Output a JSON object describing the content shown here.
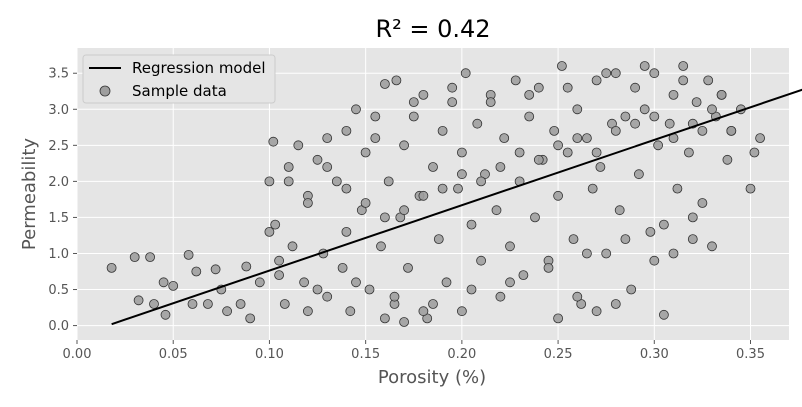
{
  "chart_data": {
    "type": "scatter",
    "title": "R² = 0.42",
    "xlabel": "Porosity (%)",
    "ylabel": "Permeability",
    "xlim": [
      0.0,
      0.37
    ],
    "ylim": [
      -0.2,
      3.85
    ],
    "x_ticks": [
      0.0,
      0.05,
      0.1,
      0.15,
      0.2,
      0.25,
      0.3,
      0.35
    ],
    "x_tick_labels": [
      "0.00",
      "0.05",
      "0.10",
      "0.15",
      "0.20",
      "0.25",
      "0.30",
      "0.35"
    ],
    "y_ticks": [
      0.0,
      0.5,
      1.0,
      1.5,
      2.0,
      2.5,
      3.0,
      3.5
    ],
    "y_tick_labels": [
      "0.0",
      "0.5",
      "1.0",
      "1.5",
      "2.0",
      "2.5",
      "3.0",
      "3.5"
    ],
    "grid": true,
    "legend_position": "top-left",
    "series": [
      {
        "name": "Regression model",
        "kind": "line",
        "color": "#000000",
        "x": [
          0.018,
          0.38
        ],
        "y": [
          0.02,
          3.3
        ]
      },
      {
        "name": "Sample data",
        "kind": "scatter",
        "color": "#9e9e9e",
        "edge_color": "#333333",
        "x": [
          0.018,
          0.03,
          0.032,
          0.038,
          0.04,
          0.045,
          0.046,
          0.05,
          0.058,
          0.06,
          0.062,
          0.068,
          0.072,
          0.075,
          0.078,
          0.085,
          0.088,
          0.09,
          0.095,
          0.1,
          0.102,
          0.103,
          0.105,
          0.108,
          0.11,
          0.112,
          0.115,
          0.118,
          0.12,
          0.12,
          0.125,
          0.128,
          0.13,
          0.13,
          0.135,
          0.138,
          0.14,
          0.14,
          0.142,
          0.145,
          0.148,
          0.15,
          0.152,
          0.155,
          0.158,
          0.16,
          0.162,
          0.165,
          0.166,
          0.168,
          0.17,
          0.172,
          0.175,
          0.178,
          0.18,
          0.182,
          0.185,
          0.188,
          0.19,
          0.192,
          0.195,
          0.198,
          0.2,
          0.2,
          0.202,
          0.205,
          0.208,
          0.21,
          0.212,
          0.215,
          0.218,
          0.22,
          0.222,
          0.225,
          0.228,
          0.23,
          0.232,
          0.235,
          0.238,
          0.24,
          0.242,
          0.245,
          0.248,
          0.25,
          0.252,
          0.255,
          0.258,
          0.26,
          0.262,
          0.265,
          0.268,
          0.27,
          0.272,
          0.275,
          0.278,
          0.28,
          0.282,
          0.285,
          0.288,
          0.29,
          0.292,
          0.295,
          0.298,
          0.3,
          0.302,
          0.305,
          0.308,
          0.31,
          0.312,
          0.315,
          0.318,
          0.32,
          0.322,
          0.325,
          0.328,
          0.33,
          0.332,
          0.335,
          0.338,
          0.34,
          0.345,
          0.35,
          0.352,
          0.355,
          0.38,
          0.1,
          0.11,
          0.12,
          0.13,
          0.14,
          0.15,
          0.16,
          0.17,
          0.18,
          0.19,
          0.2,
          0.21,
          0.22,
          0.23,
          0.24,
          0.25,
          0.26,
          0.27,
          0.28,
          0.29,
          0.3,
          0.31,
          0.32,
          0.33,
          0.34,
          0.105,
          0.125,
          0.145,
          0.165,
          0.185,
          0.205,
          0.225,
          0.245,
          0.265,
          0.285,
          0.305,
          0.325,
          0.155,
          0.175,
          0.195,
          0.215,
          0.235,
          0.255,
          0.275,
          0.295,
          0.315,
          0.335,
          0.16,
          0.17,
          0.18,
          0.26,
          0.27,
          0.3,
          0.31,
          0.32,
          0.25,
          0.28
        ],
        "y": [
          0.8,
          0.95,
          0.35,
          0.95,
          0.3,
          0.6,
          0.15,
          0.55,
          0.98,
          0.3,
          0.75,
          0.3,
          0.78,
          0.5,
          0.2,
          0.3,
          0.82,
          0.1,
          0.6,
          2.0,
          2.55,
          1.4,
          0.9,
          0.3,
          2.2,
          1.1,
          2.5,
          0.6,
          1.8,
          0.2,
          2.3,
          1.0,
          2.6,
          0.4,
          2.0,
          0.8,
          2.7,
          1.3,
          0.2,
          3.0,
          1.6,
          2.4,
          0.5,
          2.9,
          1.1,
          3.35,
          2.0,
          0.3,
          3.4,
          1.5,
          2.5,
          0.8,
          2.9,
          1.8,
          3.2,
          0.1,
          2.2,
          1.2,
          2.7,
          0.6,
          3.1,
          1.9,
          2.4,
          0.2,
          3.5,
          1.4,
          2.8,
          0.9,
          2.1,
          3.2,
          1.6,
          0.4,
          2.6,
          1.1,
          3.4,
          2.0,
          0.7,
          2.9,
          1.5,
          3.3,
          2.3,
          0.9,
          2.7,
          1.8,
          3.6,
          2.4,
          1.2,
          3.0,
          0.3,
          2.6,
          1.9,
          3.4,
          2.2,
          1.0,
          2.8,
          3.5,
          1.6,
          2.9,
          0.5,
          3.3,
          2.1,
          3.0,
          1.3,
          3.5,
          2.5,
          0.15,
          2.8,
          3.2,
          1.9,
          3.6,
          2.4,
          1.5,
          3.1,
          2.7,
          3.4,
          1.1,
          2.9,
          3.2,
          2.3,
          2.7,
          3.0,
          1.9,
          2.4,
          2.6,
          2.8,
          1.3,
          2.0,
          1.7,
          2.2,
          1.9,
          1.7,
          1.5,
          1.6,
          1.8,
          1.9,
          2.1,
          2.0,
          2.2,
          2.4,
          2.3,
          2.5,
          2.6,
          2.4,
          2.7,
          2.8,
          2.9,
          2.6,
          2.8,
          3.0,
          2.7,
          0.7,
          0.5,
          0.6,
          0.4,
          0.3,
          0.5,
          0.6,
          0.8,
          1.0,
          1.2,
          1.4,
          1.7,
          2.6,
          3.1,
          3.3,
          3.1,
          3.2,
          3.3,
          3.5,
          3.6,
          3.4,
          3.2,
          0.1,
          0.05,
          0.2,
          0.4,
          0.2,
          0.9,
          1.0,
          1.2,
          0.1,
          0.3
        ]
      }
    ]
  }
}
